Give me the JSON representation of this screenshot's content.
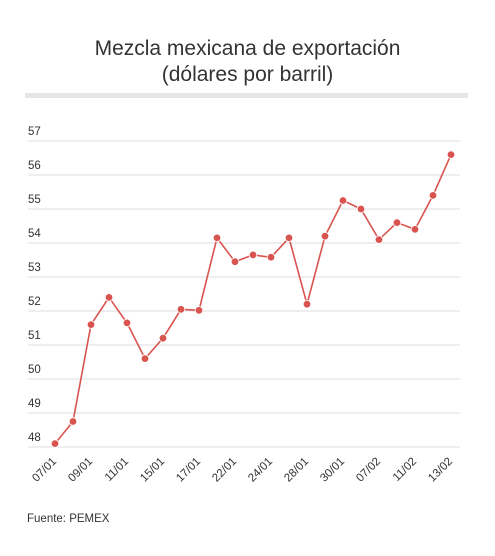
{
  "header": {
    "title_line1": "Mezcla mexicana de exportación",
    "title_line2": "(dólares por barril)"
  },
  "footer": {
    "source": "Fuente: PEMEX"
  },
  "colors": {
    "line": "#d9534f",
    "grid": "#dcdcdc",
    "text": "#333333"
  },
  "chart_data": {
    "type": "line",
    "title": "Mezcla mexicana de exportación (dólares por barril)",
    "xlabel": "",
    "ylabel": "",
    "ylim": [
      48,
      57
    ],
    "yticks": [
      48,
      49,
      50,
      51,
      52,
      53,
      54,
      55,
      56,
      57
    ],
    "grid": true,
    "legend": "none",
    "x_tick_labels": [
      "07/01",
      "09/01",
      "11/01",
      "15/01",
      "17/01",
      "22/01",
      "24/01",
      "28/01",
      "30/01",
      "07/02",
      "11/02",
      "13/02"
    ],
    "x_tick_every": 2,
    "series": [
      {
        "name": "",
        "values": [
          48.1,
          48.75,
          51.6,
          52.4,
          51.65,
          50.6,
          51.2,
          52.05,
          52.02,
          54.15,
          53.45,
          53.65,
          53.58,
          54.15,
          52.2,
          54.2,
          55.25,
          55.0,
          54.1,
          54.6,
          54.4,
          55.4,
          56.6
        ]
      }
    ]
  }
}
